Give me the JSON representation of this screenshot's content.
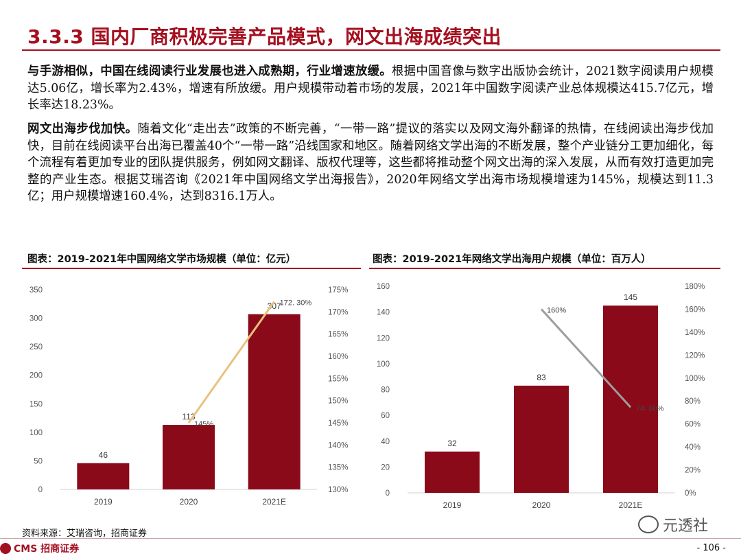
{
  "page": {
    "title": "3.3.3 国内厂商积极完善产品模式，网文出海成绩突出",
    "p1": {
      "bold": "与手游相似，中国在线阅读行业发展也进入成熟期，行业增速放缓。",
      "text": "根据中国音像与数字出版协会统计，2021数字阅读用户规模达5.06亿，增长率为2.43%，增速有所放缓。用户规模带动着市场的发展，2021年中国数字阅读产业总体规模达415.7亿元，增长率达18.23%。"
    },
    "p2": {
      "bold": "网文出海步伐加快。",
      "text": "随着文化“走出去”政策的不断完善，“一带一路”提议的落实以及网文海外翻译的热情，在线阅读出海步伐加快，目前在线阅读平台出海已覆盖40个“一带一路”沿线国家和地区。随着网络文学出海的不断发展，整个产业链分工更加细化，每个流程有着更加专业的团队提供服务，例如网文翻译、版权代理等，这些都将推动整个网文出海的深入发展，从而有效打造更加完整的产业生态。根据艾瑞咨询《2021年中国网络文学出海报告》，2020年网络文学出海市场规模增速为145%，规模达到11.3亿；用户规模增速160.4%，达到8316.1万人。"
    },
    "source": "资料来源：艾瑞咨询，招商证券",
    "logo": "CMS 招商证券",
    "page_number": "- 106 -",
    "watermark": "元透社"
  },
  "colors": {
    "accent": "#a40f1f",
    "bar": "#8b0a1a",
    "line1": "#e8c27e",
    "line2": "#9e9e9e"
  },
  "chart_data": [
    {
      "type": "bar",
      "title": "图表：2019-2021年中国网络文学市场规模（单位：亿元）",
      "categories": [
        "2019",
        "2020",
        "2021E"
      ],
      "series": [
        {
          "type": "bar",
          "values": [
            46,
            113,
            307
          ],
          "labels": [
            "46",
            "113",
            "307"
          ]
        },
        {
          "type": "line",
          "axis": "right",
          "values": [
            null,
            145,
            172.3
          ],
          "labels": [
            "",
            "145%",
            "172. 30%"
          ]
        }
      ],
      "ylim": [
        0,
        350
      ],
      "yticks": [
        "0",
        "50",
        "100",
        "150",
        "200",
        "250",
        "300",
        "350"
      ],
      "y2lim": [
        130,
        175
      ],
      "y2ticks": [
        "130%",
        "135%",
        "140%",
        "145%",
        "150%",
        "155%",
        "160%",
        "165%",
        "170%",
        "175%"
      ],
      "grid": false
    },
    {
      "type": "bar",
      "title": "图表：2019-2021年网络文学出海用户规模（单位：百万人）",
      "categories": [
        "2019",
        "2020",
        "2021E"
      ],
      "series": [
        {
          "type": "bar",
          "values": [
            32,
            83,
            145
          ],
          "labels": [
            "32",
            "83",
            "145"
          ]
        },
        {
          "type": "line",
          "axis": "right",
          "values": [
            null,
            160,
            74.6
          ],
          "labels": [
            "",
            "160%",
            "74. 60%"
          ]
        }
      ],
      "ylim": [
        0,
        160
      ],
      "yticks": [
        "0",
        "20",
        "40",
        "60",
        "80",
        "100",
        "120",
        "140",
        "160"
      ],
      "y2lim": [
        0,
        180
      ],
      "y2ticks": [
        "0%",
        "20%",
        "40%",
        "60%",
        "80%",
        "100%",
        "120%",
        "140%",
        "160%",
        "180%"
      ],
      "grid": false
    }
  ]
}
